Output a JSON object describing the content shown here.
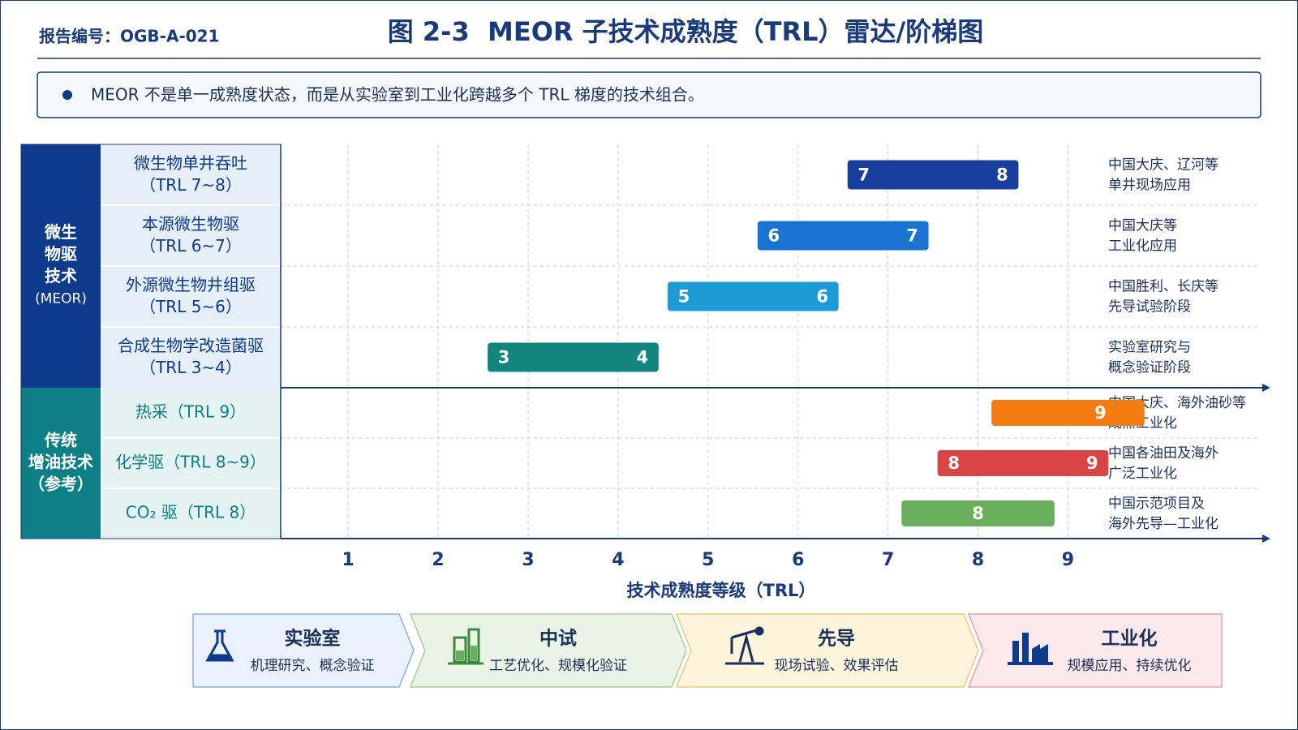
{
  "report_no": "报告编号：OGB-A-021",
  "chart_data": {
    "type": "range-bar",
    "title": "图 2-3  MEOR 子技术成熟度（TRL）雷达/阶梯图",
    "note": "MEOR 不是单一成熟度状态，而是从实验室到工业化跨越多个 TRL 梯度的技术组合。",
    "xlabel": "技术成熟度等级（TRL）",
    "xlim": [
      0.25,
      11.25
    ],
    "xticks": [
      1,
      2,
      3,
      4,
      5,
      6,
      7,
      8,
      9
    ],
    "grid": true,
    "groups": [
      {
        "lines": [
          "微生",
          "物驱",
          "技术"
        ],
        "sublabel": "(MEOR)",
        "color": "#0d3a8a",
        "rows": [
          {
            "label": "微生物单井吞吐",
            "sublabel": "（TRL 7~8）",
            "values": [
              7,
              8
            ],
            "color": "#1a3e9e",
            "note": [
              "中国大庆、辽河等",
              "单井现场应用"
            ]
          },
          {
            "label": "本源微生物驱",
            "sublabel": "（TRL 6~7）",
            "values": [
              6,
              7
            ],
            "color": "#1a73d0",
            "note": [
              "中国大庆等",
              "工业化应用"
            ]
          },
          {
            "label": "外源微生物井组驱",
            "sublabel": "（TRL 5~6）",
            "values": [
              5,
              6
            ],
            "color": "#1e9ad6",
            "note": [
              "中国胜利、长庆等",
              "先导试验阶段"
            ]
          },
          {
            "label": "合成生物学改造菌驱",
            "sublabel": "（TRL 3~4）",
            "values": [
              3,
              4
            ],
            "color": "#12857f",
            "note": [
              "实验室研究与",
              "概念验证阶段"
            ]
          }
        ]
      },
      {
        "lines": [
          "传统",
          "增油技术",
          "（参考）"
        ],
        "color": "#0e7f86",
        "rows": [
          {
            "label": "热采（TRL 9）",
            "values": [
              9
            ],
            "color": "#f47c12",
            "note": [
              "中国大庆、海外油砂等",
              "成熟工业化"
            ]
          },
          {
            "label": "化学驱（TRL 8~9）",
            "values": [
              8,
              9
            ],
            "color": "#d94444",
            "note": [
              "中国各油田及海外",
              "广泛工业化"
            ]
          },
          {
            "label": "CO₂ 驱（TRL 8）",
            "values": [
              8
            ],
            "color": "#6aae5e",
            "note": [
              "中国示范项目及",
              "海外先导—工业化"
            ]
          }
        ]
      }
    ]
  },
  "stages": [
    {
      "title": "实验室",
      "desc": "机理研究、概念验证"
    },
    {
      "title": "中试",
      "desc": "工艺优化、规模化验证"
    },
    {
      "title": "先导",
      "desc": "现场试验、效果评估"
    },
    {
      "title": "工业化",
      "desc": "规模应用、持续优化"
    }
  ]
}
